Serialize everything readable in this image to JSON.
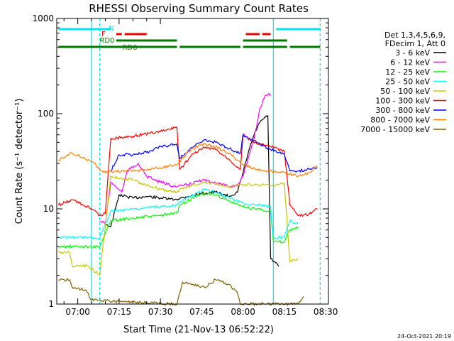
{
  "chart_data": {
    "type": "line",
    "title": "RHESSI Observing Summary Count Rates",
    "xlabel": "Start Time (21-Nov-13 06:52:22)",
    "ylabel": "Count Rate (s⁻¹ detector⁻¹)",
    "yscale": "log",
    "ylim": [
      1,
      1000
    ],
    "xlim": [
      "06:52:22",
      "08:31:00"
    ],
    "x_ticks": [
      "07:00",
      "07:15",
      "07:30",
      "07:45",
      "08:00",
      "08:15",
      "08:30"
    ],
    "y_ticks": [
      "1",
      "10",
      "100",
      "1000"
    ],
    "footer_date": "24-Oct-2021 20:19",
    "legend": {
      "placement": "right",
      "header": [
        "Det 1,3,4,5,6,9,",
        "FDecim 1, Att 0"
      ]
    },
    "flags": [
      {
        "label": "N",
        "color": "#00e5e5",
        "segments": [
          [
            "06:53",
            "07:12"
          ],
          [
            "08:12",
            "08:28"
          ]
        ]
      },
      {
        "label": "F",
        "color": "#ee0000",
        "segments": [
          [
            "07:14",
            "07:16"
          ],
          [
            "07:17",
            "07:25"
          ],
          [
            "08:01",
            "08:06"
          ],
          [
            "08:07",
            "08:10"
          ]
        ]
      },
      {
        "label": "RD0",
        "color": "#007700",
        "segments": [
          [
            "07:14",
            "07:36"
          ],
          [
            "08:00",
            "08:16"
          ]
        ]
      },
      {
        "label": "RD6",
        "color": "#007700",
        "segments": [
          [
            "06:53",
            "07:36"
          ],
          [
            "07:37",
            "07:59"
          ],
          [
            "08:00",
            "08:16"
          ],
          [
            "08:17",
            "08:28"
          ]
        ]
      }
    ],
    "vertical_markers": [
      {
        "time": "07:05",
        "style": "solid",
        "color": "#00e5e5"
      },
      {
        "time": "07:08",
        "style": "dashed",
        "color": "#00e5e5"
      },
      {
        "time": "08:11",
        "style": "solid",
        "color": "#00e5e5"
      },
      {
        "time": "08:28",
        "style": "dashed",
        "color": "#00e5e5"
      }
    ],
    "series": [
      {
        "name": "3 - 6 keV",
        "color": "#000000",
        "points": [
          [
            "07:10",
            7.0
          ],
          [
            "07:12",
            6.5
          ],
          [
            "07:15",
            14
          ],
          [
            "07:20",
            13
          ],
          [
            "07:25",
            13.5
          ],
          [
            "07:30",
            13.0
          ],
          [
            "07:35",
            12.5
          ],
          [
            "07:40",
            13.5
          ],
          [
            "07:45",
            14.5
          ],
          [
            "07:50",
            15
          ],
          [
            "07:55",
            13.5
          ],
          [
            "07:58",
            15.0
          ],
          [
            "08:00",
            24
          ],
          [
            "08:02",
            40
          ],
          [
            "08:04",
            60
          ],
          [
            "08:06",
            80
          ],
          [
            "08:08",
            92
          ],
          [
            "08:09",
            95
          ],
          [
            "08:10",
            3.0
          ],
          [
            "08:13",
            2.5
          ]
        ]
      },
      {
        "name": "6 - 12 keV",
        "color": "#ff00ff",
        "points": [
          [
            "07:08",
            7.5
          ],
          [
            "07:10",
            7.0
          ],
          [
            "07:12",
            19
          ],
          [
            "07:16",
            15
          ],
          [
            "07:18",
            25
          ],
          [
            "07:22",
            30
          ],
          [
            "07:25",
            22
          ],
          [
            "07:30",
            19
          ],
          [
            "07:36",
            17
          ],
          [
            "07:40",
            18
          ],
          [
            "07:45",
            20
          ],
          [
            "07:50",
            19
          ],
          [
            "07:55",
            17
          ],
          [
            "07:58",
            18
          ],
          [
            "08:00",
            22
          ],
          [
            "08:02",
            35
          ],
          [
            "08:04",
            55
          ],
          [
            "08:06",
            110
          ],
          [
            "08:08",
            155
          ],
          [
            "08:09",
            160
          ],
          [
            "08:10",
            160
          ]
        ]
      },
      {
        "name": "12 - 25 keV",
        "color": "#00ff00",
        "points": [
          [
            "06:53",
            4.0
          ],
          [
            "07:04",
            4.0
          ],
          [
            "07:08",
            4.0
          ],
          [
            "07:12",
            7.5
          ],
          [
            "07:20",
            8.0
          ],
          [
            "07:30",
            8.5
          ],
          [
            "07:36",
            9.0
          ],
          [
            "07:37",
            11
          ],
          [
            "07:42",
            13
          ],
          [
            "07:46",
            14.5
          ],
          [
            "07:50",
            14
          ],
          [
            "07:55",
            12
          ],
          [
            "08:00",
            10.5
          ],
          [
            "08:05",
            10.0
          ],
          [
            "08:10",
            9.5
          ],
          [
            "08:11",
            4.5
          ],
          [
            "08:15",
            4.5
          ],
          [
            "08:17",
            6.0
          ],
          [
            "08:20",
            6.5
          ]
        ]
      },
      {
        "name": "25 - 50 keV",
        "color": "#00ffff",
        "points": [
          [
            "06:53",
            5.0
          ],
          [
            "07:04",
            5.0
          ],
          [
            "07:08",
            5.0
          ],
          [
            "07:12",
            9.5
          ],
          [
            "07:20",
            10.0
          ],
          [
            "07:30",
            10.5
          ],
          [
            "07:36",
            11.0
          ],
          [
            "07:37",
            12
          ],
          [
            "07:42",
            14
          ],
          [
            "07:46",
            16
          ],
          [
            "07:50",
            15
          ],
          [
            "07:55",
            13
          ],
          [
            "08:00",
            11.5
          ],
          [
            "08:05",
            11.0
          ],
          [
            "08:10",
            10.5
          ],
          [
            "08:11",
            5.0
          ],
          [
            "08:15",
            5.0
          ],
          [
            "08:17",
            7.5
          ],
          [
            "08:20",
            7.0
          ]
        ]
      },
      {
        "name": "50 - 100 keV",
        "color": "#c8c800",
        "points": [
          [
            "06:53",
            3.5
          ],
          [
            "06:57",
            3.5
          ],
          [
            "06:58",
            2.5
          ],
          [
            "07:04",
            2.5
          ],
          [
            "07:08",
            2.0
          ],
          [
            "07:12",
            22
          ],
          [
            "07:20",
            20
          ],
          [
            "07:30",
            16
          ],
          [
            "07:36",
            15
          ],
          [
            "07:37",
            16
          ],
          [
            "07:42",
            18
          ],
          [
            "07:46",
            19
          ],
          [
            "07:50",
            18
          ],
          [
            "07:55",
            17
          ],
          [
            "08:00",
            18
          ],
          [
            "08:05",
            18
          ],
          [
            "08:10",
            17.5
          ],
          [
            "08:15",
            18.5
          ],
          [
            "08:17",
            2.8
          ],
          [
            "08:20",
            3.0
          ]
        ]
      },
      {
        "name": "100 - 300 keV",
        "color": "#ff0000",
        "points": [
          [
            "06:53",
            11
          ],
          [
            "06:58",
            12.5
          ],
          [
            "07:02",
            11
          ],
          [
            "07:05",
            10
          ],
          [
            "07:08",
            8.5
          ],
          [
            "07:10",
            9.0
          ],
          [
            "07:12",
            55
          ],
          [
            "07:20",
            58
          ],
          [
            "07:30",
            65
          ],
          [
            "07:36",
            72
          ],
          [
            "07:37",
            26
          ],
          [
            "07:42",
            38
          ],
          [
            "07:46",
            44
          ],
          [
            "07:50",
            42
          ],
          [
            "07:55",
            33
          ],
          [
            "07:59",
            26
          ],
          [
            "08:00",
            60
          ],
          [
            "08:05",
            48
          ],
          [
            "08:10",
            45
          ],
          [
            "08:15",
            40
          ],
          [
            "08:17",
            11
          ],
          [
            "08:20",
            8.5
          ],
          [
            "08:24",
            8.8
          ],
          [
            "08:27",
            10
          ]
        ]
      },
      {
        "name": "300 - 800 keV",
        "color": "#0000ff",
        "points": [
          [
            "07:12",
            25
          ],
          [
            "07:15",
            37
          ],
          [
            "07:20",
            37
          ],
          [
            "07:26",
            40
          ],
          [
            "07:30",
            45
          ],
          [
            "07:36",
            48
          ],
          [
            "07:37",
            34
          ],
          [
            "07:42",
            45
          ],
          [
            "07:46",
            53
          ],
          [
            "07:50",
            50
          ],
          [
            "07:55",
            43
          ],
          [
            "07:59",
            38
          ],
          [
            "08:00",
            60
          ],
          [
            "08:05",
            50
          ],
          [
            "08:10",
            42
          ],
          [
            "08:15",
            38
          ],
          [
            "08:17",
            25
          ],
          [
            "08:20",
            25
          ],
          [
            "08:24",
            26
          ],
          [
            "08:27",
            27
          ]
        ]
      },
      {
        "name": "800 - 7000 keV",
        "color": "#ff8000",
        "points": [
          [
            "06:53",
            32
          ],
          [
            "06:57",
            38
          ],
          [
            "07:00",
            37
          ],
          [
            "07:03",
            33
          ],
          [
            "07:06",
            30
          ],
          [
            "07:08",
            26
          ],
          [
            "07:10",
            24
          ],
          [
            "07:12",
            25
          ],
          [
            "07:20",
            25
          ],
          [
            "07:30",
            27
          ],
          [
            "07:36",
            29
          ],
          [
            "07:40",
            40
          ],
          [
            "07:45",
            48
          ],
          [
            "07:50",
            45
          ],
          [
            "07:55",
            38
          ],
          [
            "07:59",
            31
          ],
          [
            "08:00",
            29
          ],
          [
            "08:05",
            26
          ],
          [
            "08:10",
            25
          ],
          [
            "08:15",
            24
          ],
          [
            "08:20",
            22
          ],
          [
            "08:24",
            24
          ],
          [
            "08:27",
            28
          ]
        ]
      },
      {
        "name": "7000 - 15000 keV",
        "color": "#806000",
        "points": [
          [
            "06:53",
            1.8
          ],
          [
            "06:57",
            1.8
          ],
          [
            "06:58",
            1.5
          ],
          [
            "07:03",
            1.4
          ],
          [
            "07:05",
            1.1
          ],
          [
            "07:36",
            1.0
          ],
          [
            "07:38",
            1.7
          ],
          [
            "07:42",
            1.6
          ],
          [
            "07:46",
            1.5
          ],
          [
            "07:50",
            1.8
          ],
          [
            "07:55",
            1.6
          ],
          [
            "07:58",
            1.3
          ],
          [
            "07:59",
            1.0
          ],
          [
            "08:20",
            1.0
          ],
          [
            "08:22",
            1.2
          ]
        ]
      }
    ]
  }
}
